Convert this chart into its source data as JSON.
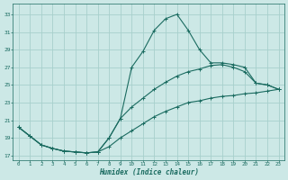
{
  "bg_color": "#cce8e6",
  "grid_color": "#a8d0cc",
  "line_color": "#1a6b60",
  "xlabel": "Humidex (Indice chaleur)",
  "xlim": [
    -0.5,
    23.5
  ],
  "ylim": [
    16.5,
    34.2
  ],
  "yticks": [
    17,
    19,
    21,
    23,
    25,
    27,
    29,
    31,
    33
  ],
  "xticks": [
    0,
    1,
    2,
    3,
    4,
    5,
    6,
    7,
    8,
    9,
    10,
    11,
    12,
    13,
    14,
    15,
    16,
    17,
    18,
    19,
    20,
    21,
    22,
    23
  ],
  "line1_x": [
    0,
    1,
    2,
    3,
    4,
    5,
    6,
    7,
    8,
    9,
    10,
    11,
    12,
    13,
    14,
    15,
    16,
    17,
    18,
    19,
    20,
    21,
    22,
    23
  ],
  "line1_y": [
    20.2,
    19.2,
    18.2,
    17.8,
    17.5,
    17.4,
    17.3,
    17.4,
    18.0,
    19.0,
    19.8,
    20.6,
    21.4,
    22.0,
    22.5,
    23.0,
    23.2,
    23.5,
    23.7,
    23.8,
    24.0,
    24.1,
    24.3,
    24.5
  ],
  "line2_x": [
    0,
    1,
    2,
    3,
    4,
    5,
    6,
    7,
    8,
    9,
    10,
    11,
    12,
    13,
    14,
    15,
    16,
    17,
    18,
    19,
    20,
    21,
    22,
    23
  ],
  "line2_y": [
    20.2,
    19.2,
    18.2,
    17.8,
    17.5,
    17.4,
    17.3,
    17.4,
    19.0,
    21.2,
    22.5,
    23.5,
    24.5,
    25.3,
    26.0,
    26.5,
    26.8,
    27.2,
    27.3,
    27.0,
    26.5,
    25.2,
    25.0,
    24.5
  ],
  "line3_x": [
    0,
    1,
    2,
    3,
    4,
    5,
    6,
    7,
    8,
    9,
    10,
    11,
    12,
    13,
    14,
    15,
    16,
    17,
    18,
    19,
    20,
    21,
    22,
    23
  ],
  "line3_y": [
    20.2,
    19.2,
    18.2,
    17.8,
    17.5,
    17.4,
    17.3,
    17.4,
    19.0,
    21.2,
    27.0,
    28.8,
    31.2,
    32.5,
    33.0,
    31.2,
    29.0,
    27.5,
    27.5,
    27.3,
    27.0,
    25.2,
    25.0,
    24.5
  ]
}
